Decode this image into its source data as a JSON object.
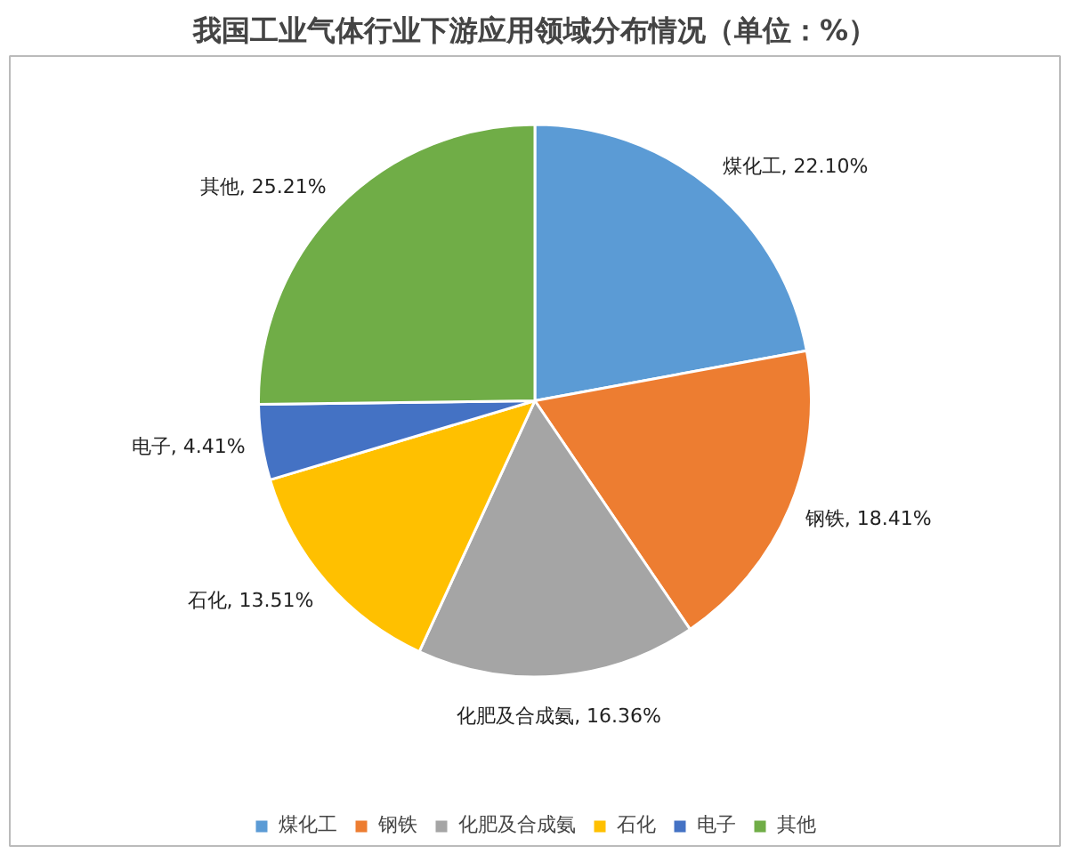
{
  "chart_data": {
    "type": "pie",
    "title": "我国工业气体行业下游应用领域分布情况（单位：%）",
    "categories": [
      "煤化工",
      "钢铁",
      "化肥及合成氨",
      "石化",
      "电子",
      "其他"
    ],
    "values": [
      22.1,
      18.41,
      16.36,
      13.51,
      4.41,
      25.21
    ],
    "value_labels": [
      "煤化工, 22.10%",
      "钢铁, 18.41%",
      "化肥及合成氨, 16.36%",
      "石化, 13.51%",
      "电子, 4.41%",
      "其他, 25.21%"
    ],
    "colors": [
      "#5b9bd5",
      "#ed7d31",
      "#a5a5a5",
      "#ffc000",
      "#4472c4",
      "#70ad47"
    ],
    "legend": "bottom"
  }
}
